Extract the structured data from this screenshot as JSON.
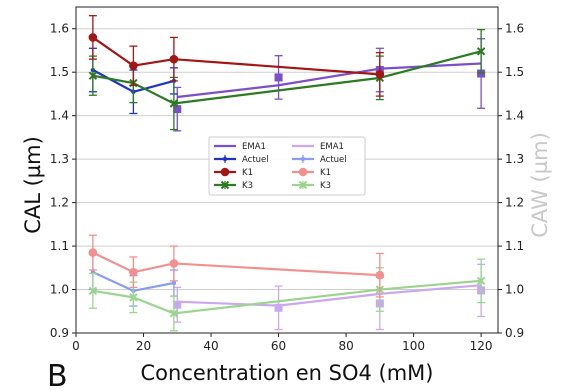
{
  "panel_label": "B",
  "chart_data": {
    "type": "line",
    "xlabel": "Concentration en SO4 (mM)",
    "ylabel_left": "CAL (µm)",
    "ylabel_right": "CAW (µm)",
    "xlim": [
      0,
      125
    ],
    "ylim": [
      0.9,
      1.65
    ],
    "xticks": [
      "0",
      "20",
      "40",
      "60",
      "80",
      "100",
      "120"
    ],
    "yticks": [
      "0.9",
      "1.0",
      "1.1",
      "1.2",
      "1.3",
      "1.4",
      "1.5",
      "1.6"
    ],
    "grid": "horizontal",
    "legend_placement": "center",
    "legend_columns": [
      [
        "EMA1",
        "Actuel",
        "K1",
        "K3"
      ],
      [
        "EMA1",
        "Actuel",
        "K1",
        "K3"
      ]
    ],
    "colors": {
      "cal_ema1": "#7b4fc9",
      "cal_actuel": "#1e33c8",
      "cal_k1": "#a31616",
      "cal_k3": "#2c7a22",
      "caw_ema1": "#c9a8ee",
      "caw_actuel": "#8a9cf2",
      "caw_k1": "#f29090",
      "caw_k3": "#9ad48f"
    },
    "series": [
      {
        "group": "CAL",
        "name": "EMA1",
        "kind": "line-square",
        "x": [
          30,
          60,
          90,
          120
        ],
        "y": [
          1.443,
          1.47,
          1.508,
          1.52
        ],
        "err": [
          0.05,
          0.05,
          0.05,
          0.08
        ],
        "markers_y": [
          1.415,
          1.488,
          1.505,
          1.497
        ]
      },
      {
        "group": "CAL",
        "name": "Actuel",
        "kind": "errorbar",
        "x": [
          5,
          17,
          29
        ],
        "y": [
          1.505,
          1.455,
          1.48
        ],
        "err": [
          0.05,
          0.05,
          0.03
        ]
      },
      {
        "group": "CAL",
        "name": "K1",
        "kind": "errorbar",
        "x": [
          5,
          17,
          29,
          90
        ],
        "y": [
          1.58,
          1.515,
          1.53,
          1.495
        ],
        "err": [
          0.05,
          0.045,
          0.05,
          0.05
        ]
      },
      {
        "group": "CAL",
        "name": "K3",
        "kind": "errorbar",
        "x": [
          5,
          17,
          29,
          90,
          120
        ],
        "y": [
          1.492,
          1.475,
          1.428,
          1.487,
          1.548
        ],
        "err": [
          0.045,
          0.045,
          0.06,
          0.05,
          0.05
        ]
      },
      {
        "group": "CAW",
        "name": "EMA1",
        "kind": "line-square",
        "x": [
          30,
          60,
          90,
          120
        ],
        "y": [
          0.972,
          0.963,
          0.99,
          1.01
        ],
        "err": [
          0.04,
          0.05,
          0.06,
          0.06
        ],
        "markers_y": [
          0.965,
          0.958,
          0.968,
          0.998
        ]
      },
      {
        "group": "CAW",
        "name": "Actuel",
        "kind": "errorbar",
        "x": [
          5,
          17,
          29
        ],
        "y": [
          1.04,
          0.997,
          1.015
        ],
        "err": [
          0.04,
          0.035,
          0.03
        ]
      },
      {
        "group": "CAW",
        "name": "K1",
        "kind": "errorbar",
        "x": [
          5,
          17,
          29,
          90
        ],
        "y": [
          1.085,
          1.04,
          1.06,
          1.033
        ],
        "err": [
          0.04,
          0.035,
          0.04,
          0.05
        ]
      },
      {
        "group": "CAW",
        "name": "K3",
        "kind": "errorbar",
        "x": [
          5,
          17,
          29,
          90,
          120
        ],
        "y": [
          0.997,
          0.982,
          0.945,
          1.0,
          1.02
        ],
        "err": [
          0.04,
          0.035,
          0.04,
          0.05,
          0.05
        ]
      }
    ]
  }
}
